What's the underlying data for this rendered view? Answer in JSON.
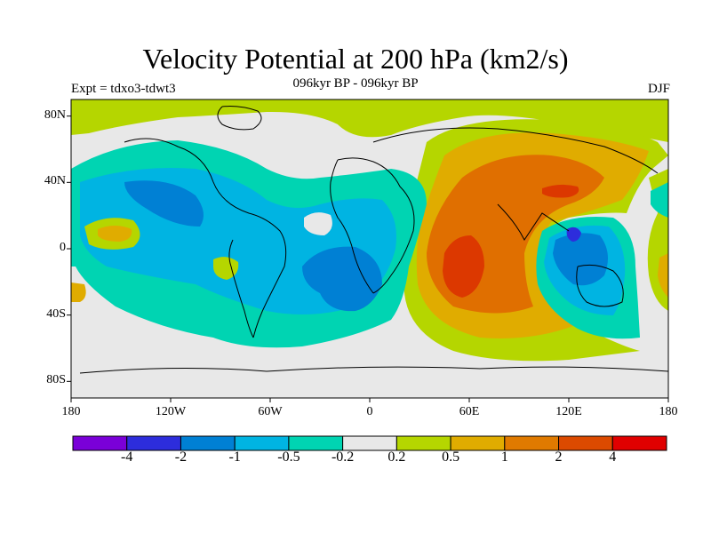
{
  "header": {
    "title": "Velocity Potential at 200 hPa (km2/s)",
    "subtitle": "096kyr BP - 096kyr BP",
    "expt": "Expt = tdxo3-tdwt3",
    "season": "DJF"
  },
  "map": {
    "lat_labels": [
      "80N",
      "40N",
      "0",
      "40S",
      "80S"
    ],
    "lon_labels": [
      "180",
      "120W",
      "60W",
      "0",
      "60E",
      "120E",
      "180"
    ],
    "lat_range": [
      -90,
      90
    ],
    "lon_range": [
      -180,
      180
    ],
    "background_color": "#e8e8e8",
    "regions": [
      {
        "name": "north-pole-band",
        "level": "0.2 to 0.5",
        "color": "#b5d600"
      },
      {
        "name": "afro-asian-high",
        "level": "0.5 to 1",
        "color": "#e0ac00"
      },
      {
        "name": "indian-ocean-core",
        "level": "1 to 2",
        "color": "#e06f00"
      },
      {
        "name": "indian-ocean-max",
        "level": "2 to 4",
        "color": "#dc3800"
      },
      {
        "name": "pacific-low",
        "level": "-0.5 to -0.2",
        "color": "#00d4b2"
      },
      {
        "name": "pacific-low-core",
        "level": "-1 to -0.5",
        "color": "#00b4e2"
      },
      {
        "name": "pacific-min",
        "level": "-2 to -1",
        "color": "#0080d4"
      },
      {
        "name": "atlantic-low",
        "level": "-1 to -0.5",
        "color": "#00b4e2"
      },
      {
        "name": "maritime-continent-low",
        "level": "-2 to -1",
        "color": "#0080d4"
      }
    ]
  },
  "colorbar": {
    "colors": [
      "#7a00d8",
      "#2d2ddc",
      "#0080d4",
      "#00b4e2",
      "#00d4b2",
      "#e8e8e8",
      "#b5d600",
      "#e0ac00",
      "#e07a00",
      "#dc4a00",
      "#e00000"
    ],
    "labels": [
      "-4",
      "-2",
      "-1",
      "-0.5",
      "-0.2",
      "0.2",
      "0.5",
      "1",
      "2",
      "4"
    ]
  }
}
